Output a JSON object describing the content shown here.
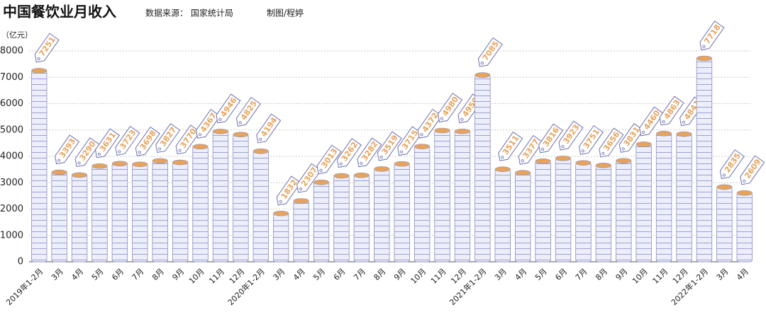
{
  "chart_data": {
    "type": "bar",
    "title": "中国餐饮业月收入",
    "source": "数据来源： 国家统计局",
    "credit": "制图/程婷",
    "y_label": "（亿元）",
    "categories": [
      "2019年1-2月",
      "3月",
      "4月",
      "5月",
      "6月",
      "7月",
      "8月",
      "9月",
      "10月",
      "11月",
      "12月",
      "2020年1-2月",
      "3月",
      "4月",
      "5月",
      "6月",
      "7月",
      "8月",
      "9月",
      "10月",
      "11月",
      "12月",
      "2021年1-2月",
      "3月",
      "4月",
      "5月",
      "6月",
      "7月",
      "8月",
      "9月",
      "10月",
      "11月",
      "12月",
      "2022年1-2月",
      "3月",
      "4月"
    ],
    "values": [
      7251,
      3393,
      3290,
      3631,
      3723,
      3698,
      3827,
      3770,
      4367,
      4946,
      4825,
      4194,
      1832,
      2307,
      3013,
      3262,
      3282,
      3519,
      3715,
      4372,
      4980,
      4950,
      7085,
      3511,
      3377,
      3816,
      3923,
      3751,
      3656,
      3831,
      4460,
      4863,
      4841,
      7718,
      2835,
      2609
    ],
    "color": "#e9eaf7",
    "top_color": "#e8a35a",
    "ylim": [
      0,
      8000
    ],
    "yticks": [
      0,
      1000,
      2000,
      3000,
      4000,
      5000,
      6000,
      7000,
      8000
    ],
    "grid": true
  }
}
